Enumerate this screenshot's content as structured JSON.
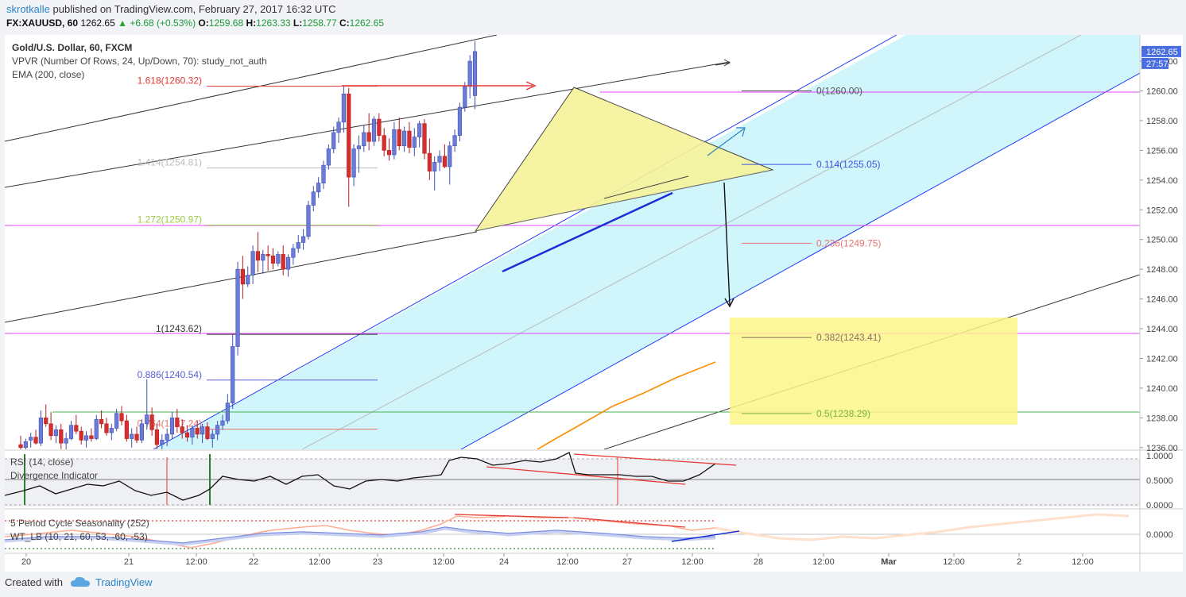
{
  "header": {
    "author": "skrotkalle",
    "published_text": "published on TradingView.com, February 27, 2017 16:32 UTC",
    "symbol": "FX:XAUUSD, 60",
    "last": "1262.65",
    "arrow": "▲",
    "change": "+6.68 (+0.53%)",
    "open_label": "O:",
    "open": "1259.68",
    "high_label": "H:",
    "high": "1263.33",
    "low_label": "L:",
    "low": "1258.77",
    "close_label": "C:",
    "close": "1262.65"
  },
  "legend": {
    "title": "Gold/U.S. Dollar, 60, FXCM",
    "vpvr": "VPVR (Number Of Rows, 24, Up/Down, 70): study_not_auth",
    "ema": "EMA (200, close)",
    "rsi": "RSI (14, close)",
    "divergence": "Divergence Indicator",
    "seasonality": "5 Period Cycle Seasonality (252)",
    "wt": "WT_LB (10, 21, 60, 53, -60, -53)"
  },
  "price_axis": {
    "ticks": [
      "1262.00",
      "1260.00",
      "1258.00",
      "1256.00",
      "1254.00",
      "1252.00",
      "1250.00",
      "1248.00",
      "1246.00",
      "1244.00",
      "1242.00",
      "1240.00",
      "1238.00",
      "1236.00"
    ],
    "tick_values": [
      1262,
      1260,
      1258,
      1256,
      1254,
      1252,
      1250,
      1248,
      1246,
      1244,
      1242,
      1240,
      1238,
      1236
    ],
    "last_price_label": "1262.65",
    "countdown": "27:57"
  },
  "rsi_axis": {
    "ticks": [
      "1.0000",
      "0.5000",
      "0.0000"
    ],
    "tick_values": [
      1,
      0.5,
      0
    ]
  },
  "wt_axis": {
    "ticks": [
      "0.0000"
    ],
    "tick_values": [
      0
    ]
  },
  "time_axis": {
    "labels": [
      "20",
      "21",
      "12:00",
      "22",
      "12:00",
      "23",
      "12:00",
      "24",
      "12:00",
      "27",
      "12:00",
      "28",
      "12:00",
      "Mar",
      "12:00",
      "2",
      "12:00"
    ],
    "bold": [
      false,
      false,
      false,
      false,
      false,
      false,
      false,
      false,
      false,
      false,
      false,
      false,
      false,
      true,
      false,
      false,
      false
    ]
  },
  "fib_extension_labels": [
    {
      "text": "1.618(1260.32)",
      "value": 1260.32,
      "color": "#e53935"
    },
    {
      "text": "1.414(1254.81)",
      "value": 1254.81,
      "color": "#bdbdbd"
    },
    {
      "text": "1.272(1250.97)",
      "value": 1250.97,
      "color": "#9ccc3c"
    },
    {
      "text": "1(1243.62)",
      "value": 1243.62,
      "color": "#333333"
    },
    {
      "text": "0.886(1240.54)",
      "value": 1240.54,
      "color": "#5c5cd6"
    },
    {
      "text": "0.764(1237.24)",
      "value": 1237.24,
      "color": "#e57373"
    }
  ],
  "fib_retracement_labels": [
    {
      "text": "0(1260.00)",
      "value": 1260.0,
      "color": "#555555"
    },
    {
      "text": "0.114(1255.05)",
      "value": 1255.05,
      "color": "#3f51e6"
    },
    {
      "text": "0.236(1249.75)",
      "value": 1249.75,
      "color": "#e57373"
    },
    {
      "text": "0.382(1243.41)",
      "value": 1243.41,
      "color": "#8d6e63"
    },
    {
      "text": "0.5(1238.29)",
      "value": 1238.29,
      "color": "#7cb342"
    }
  ],
  "colors": {
    "candle_up": "#6b7bd6",
    "candle_down": "#d32f2f",
    "channel": "#1e3cff",
    "channel_fill": "#c8f4fa",
    "ema": "#ff8c00",
    "triangle_fill": "#f6f39a",
    "target_box": "#fdf68a",
    "magenta_line": "#e040fb",
    "green_line": "#4caf50"
  },
  "chart_data": {
    "type": "candlestick",
    "title": "Gold/U.S. Dollar, 60, FXCM",
    "ylim": [
      1235.6,
      1264.4
    ],
    "last": 1262.65,
    "ohlc_values": [
      [
        1236.2,
        1236.8,
        1235.6,
        1236.0
      ],
      [
        1236.0,
        1236.6,
        1235.7,
        1236.4
      ],
      [
        1236.5,
        1237.0,
        1236.0,
        1236.7
      ],
      [
        1236.7,
        1237.2,
        1236.2,
        1236.3
      ],
      [
        1236.3,
        1238.5,
        1236.1,
        1238.0
      ],
      [
        1238.0,
        1238.9,
        1237.4,
        1237.6
      ],
      [
        1237.6,
        1238.4,
        1236.5,
        1236.8
      ],
      [
        1236.8,
        1237.5,
        1236.3,
        1237.2
      ],
      [
        1237.2,
        1237.6,
        1235.9,
        1236.3
      ],
      [
        1236.3,
        1237.0,
        1235.8,
        1236.6
      ],
      [
        1236.6,
        1237.8,
        1236.5,
        1237.5
      ],
      [
        1237.5,
        1238.2,
        1236.9,
        1237.1
      ],
      [
        1237.1,
        1237.4,
        1236.2,
        1236.5
      ],
      [
        1236.5,
        1237.1,
        1236.0,
        1236.8
      ],
      [
        1236.8,
        1237.3,
        1236.4,
        1236.6
      ],
      [
        1236.6,
        1238.2,
        1236.5,
        1237.9
      ],
      [
        1237.9,
        1238.5,
        1237.3,
        1237.6
      ],
      [
        1237.6,
        1238.0,
        1236.8,
        1237.0
      ],
      [
        1237.0,
        1237.6,
        1236.5,
        1237.3
      ],
      [
        1237.3,
        1238.6,
        1237.1,
        1238.3
      ],
      [
        1238.3,
        1238.8,
        1237.5,
        1237.8
      ],
      [
        1237.8,
        1238.2,
        1236.4,
        1236.6
      ],
      [
        1236.6,
        1237.3,
        1236.0,
        1236.9
      ],
      [
        1236.9,
        1237.4,
        1236.3,
        1236.5
      ],
      [
        1236.5,
        1237.9,
        1236.3,
        1237.6
      ],
      [
        1237.6,
        1240.6,
        1237.2,
        1238.2
      ],
      [
        1238.2,
        1238.7,
        1236.8,
        1237.2
      ],
      [
        1237.2,
        1237.6,
        1235.9,
        1236.2
      ],
      [
        1236.2,
        1236.9,
        1235.8,
        1236.5
      ],
      [
        1236.5,
        1237.3,
        1236.1,
        1236.9
      ],
      [
        1236.9,
        1238.4,
        1236.6,
        1238.0
      ],
      [
        1238.0,
        1238.6,
        1237.0,
        1237.4
      ],
      [
        1237.4,
        1237.9,
        1236.6,
        1237.0
      ],
      [
        1237.0,
        1237.5,
        1236.4,
        1236.7
      ],
      [
        1236.7,
        1237.5,
        1236.2,
        1237.3
      ],
      [
        1237.3,
        1237.8,
        1236.6,
        1236.9
      ],
      [
        1236.9,
        1237.6,
        1236.3,
        1237.4
      ],
      [
        1237.4,
        1237.7,
        1236.5,
        1236.6
      ],
      [
        1236.6,
        1237.2,
        1236.0,
        1236.9
      ],
      [
        1236.9,
        1237.8,
        1236.5,
        1237.5
      ],
      [
        1237.5,
        1238.2,
        1237.2,
        1237.8
      ],
      [
        1237.8,
        1239.6,
        1237.6,
        1239.0
      ],
      [
        1239.0,
        1243.6,
        1238.6,
        1242.8
      ],
      [
        1242.8,
        1248.5,
        1242.2,
        1248.0
      ],
      [
        1248.0,
        1248.9,
        1246.0,
        1247.0
      ],
      [
        1247.0,
        1248.2,
        1246.8,
        1247.6
      ],
      [
        1247.6,
        1249.6,
        1247.0,
        1249.2
      ],
      [
        1249.2,
        1250.5,
        1247.8,
        1248.6
      ],
      [
        1248.6,
        1249.3,
        1247.7,
        1249.0
      ],
      [
        1249.0,
        1249.6,
        1247.9,
        1248.9
      ],
      [
        1248.9,
        1249.4,
        1248.0,
        1248.4
      ],
      [
        1248.4,
        1249.2,
        1248.2,
        1249.0
      ],
      [
        1249.0,
        1249.6,
        1247.6,
        1248.0
      ],
      [
        1248.0,
        1249.0,
        1247.5,
        1248.8
      ],
      [
        1248.8,
        1249.7,
        1248.3,
        1249.4
      ],
      [
        1249.4,
        1250.3,
        1249.1,
        1249.8
      ],
      [
        1249.8,
        1250.7,
        1249.3,
        1250.2
      ],
      [
        1250.2,
        1252.6,
        1250.0,
        1252.3
      ],
      [
        1252.3,
        1253.6,
        1251.9,
        1253.2
      ],
      [
        1253.2,
        1254.2,
        1252.8,
        1253.8
      ],
      [
        1253.8,
        1255.3,
        1253.4,
        1255.0
      ],
      [
        1255.0,
        1256.4,
        1254.7,
        1256.1
      ],
      [
        1256.1,
        1257.6,
        1255.8,
        1257.2
      ],
      [
        1257.2,
        1258.2,
        1256.5,
        1257.9
      ],
      [
        1257.9,
        1260.3,
        1257.2,
        1259.8
      ],
      [
        1259.8,
        1260.2,
        1252.2,
        1254.2
      ],
      [
        1254.2,
        1256.4,
        1253.6,
        1256.1
      ],
      [
        1256.1,
        1257.0,
        1254.5,
        1256.3
      ],
      [
        1256.3,
        1257.7,
        1255.9,
        1257.2
      ],
      [
        1257.2,
        1258.5,
        1256.0,
        1256.6
      ],
      [
        1256.6,
        1258.3,
        1256.3,
        1258.1
      ],
      [
        1258.1,
        1258.5,
        1256.6,
        1257.0
      ],
      [
        1257.0,
        1257.5,
        1255.6,
        1256.0
      ],
      [
        1256.0,
        1256.8,
        1255.3,
        1255.7
      ],
      [
        1255.7,
        1257.9,
        1255.4,
        1257.4
      ],
      [
        1257.4,
        1258.2,
        1256.0,
        1256.3
      ],
      [
        1256.3,
        1257.6,
        1255.9,
        1257.3
      ],
      [
        1257.3,
        1257.9,
        1255.8,
        1256.2
      ],
      [
        1256.2,
        1257.5,
        1255.6,
        1256.9
      ],
      [
        1256.9,
        1258.0,
        1256.2,
        1257.8
      ],
      [
        1257.8,
        1258.1,
        1255.4,
        1255.8
      ],
      [
        1255.8,
        1256.8,
        1254.0,
        1254.6
      ],
      [
        1254.6,
        1255.6,
        1253.3,
        1255.2
      ],
      [
        1255.2,
        1256.0,
        1254.6,
        1255.6
      ],
      [
        1255.6,
        1256.4,
        1254.8,
        1254.9
      ],
      [
        1254.9,
        1256.6,
        1253.7,
        1256.3
      ],
      [
        1256.3,
        1257.4,
        1255.9,
        1257.0
      ],
      [
        1257.0,
        1259.2,
        1256.6,
        1258.9
      ],
      [
        1258.9,
        1260.6,
        1258.6,
        1260.3
      ],
      [
        1260.3,
        1262.4,
        1259.5,
        1262.0
      ],
      [
        1259.68,
        1263.33,
        1258.77,
        1262.65
      ]
    ]
  }
}
